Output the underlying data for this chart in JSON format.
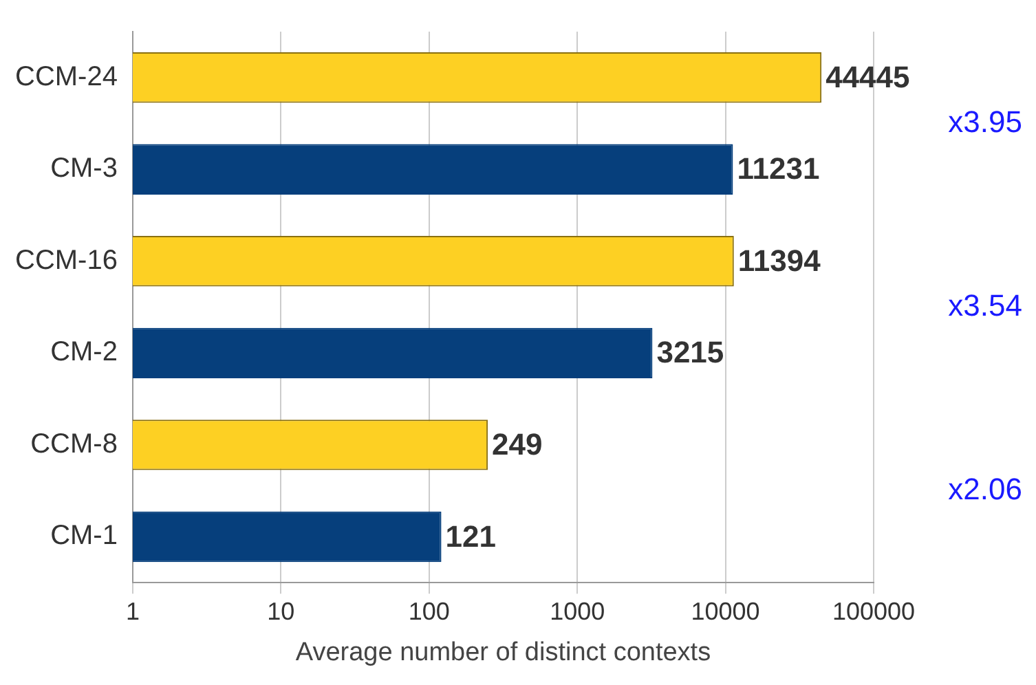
{
  "chart_data": {
    "type": "bar",
    "orientation": "horizontal",
    "xlabel": "Average number of distinct contexts",
    "categories": [
      "CCM-24",
      "CM-3",
      "CCM-16",
      "CM-2",
      "CCM-8",
      "CM-1"
    ],
    "values": [
      44445,
      11231,
      11394,
      3215,
      249,
      121
    ],
    "colors": [
      "#fdd023",
      "#063f7c",
      "#fdd023",
      "#063f7c",
      "#fdd023",
      "#063f7c"
    ],
    "log": "x",
    "xlim": [
      1,
      100000
    ],
    "xticks": [
      1,
      10,
      100,
      1000,
      10000,
      100000
    ],
    "grid": "x",
    "data_labels": true,
    "legend": false,
    "annotations": [
      "x3.95",
      "x3.54",
      "x2.06"
    ]
  }
}
